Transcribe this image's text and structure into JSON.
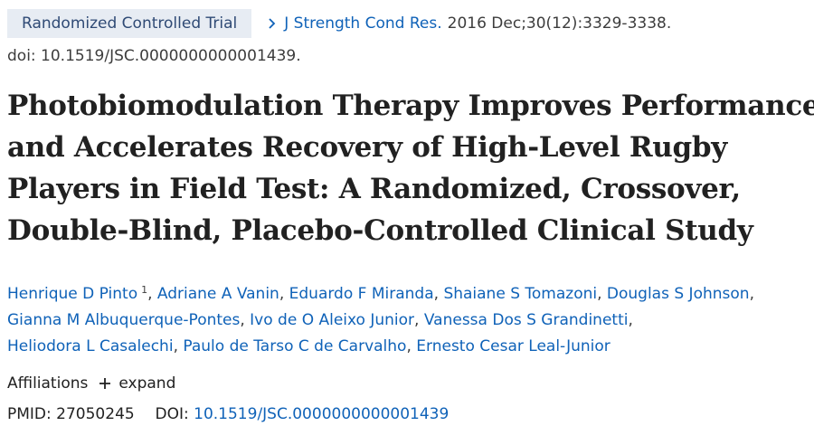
{
  "header": {
    "publication_type": "Randomized Controlled Trial",
    "journal": "J Strength Cond Res.",
    "citation": "2016 Dec;30(12):3329-3338.",
    "doi_line": "doi: 10.1519/JSC.0000000000001439."
  },
  "title_lines": [
    "Photobiomodulation Therapy Improves Performance",
    "and Accelerates Recovery of High-Level Rugby",
    "Players in Field Test: A Randomized, Crossover,",
    "Double-Blind, Placebo-Controlled Clinical Study"
  ],
  "authors": {
    "rows": [
      [
        {
          "name": "Henrique D Pinto",
          "sup": "1"
        },
        {
          "name": "Adriane A Vanin"
        },
        {
          "name": "Eduardo F Miranda"
        },
        {
          "name": "Shaiane S Tomazoni"
        },
        {
          "name": "Douglas S Johnson"
        }
      ],
      [
        {
          "name": "Gianna M Albuquerque-Pontes"
        },
        {
          "name": "Ivo de O Aleixo Junior"
        },
        {
          "name": "Vanessa Dos S Grandinetti"
        }
      ],
      [
        {
          "name": "Heliodora L Casalechi"
        },
        {
          "name": "Paulo de Tarso C de Carvalho"
        },
        {
          "name": "Ernesto Cesar Leal-Junior"
        }
      ]
    ]
  },
  "affiliations": {
    "label": "Affiliations",
    "expand_label": "expand"
  },
  "identifiers": {
    "pmid_label": "PMID:",
    "pmid": "27050245",
    "doi_label": "DOI:",
    "doi": "10.1519/JSC.0000000000001439"
  },
  "colors": {
    "link": "#0f62b8",
    "badge_bg": "#e7ecf3",
    "badge_text": "#2f4a75"
  }
}
